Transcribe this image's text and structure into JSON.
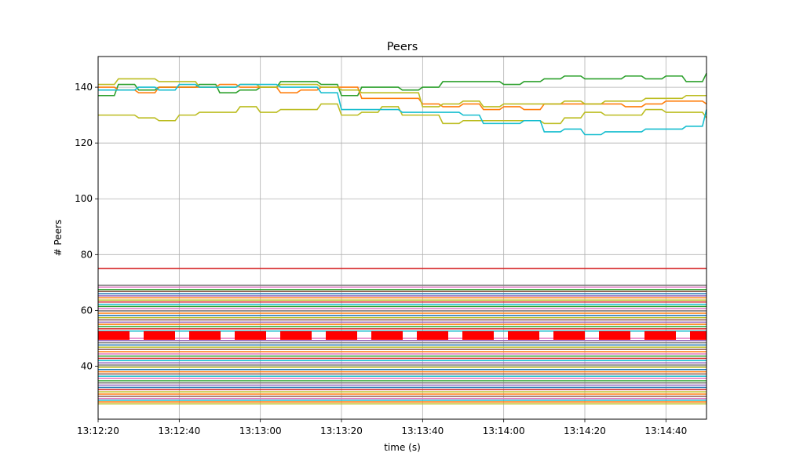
{
  "chart_data": {
    "type": "line",
    "title": "Peers",
    "xlabel": "time (s)",
    "ylabel": "# Peers",
    "x_ticks": [
      "13:12:20",
      "13:12:40",
      "13:13:00",
      "13:13:20",
      "13:13:40",
      "13:14:00",
      "13:14:20",
      "13:14:40"
    ],
    "x_tick_seconds": [
      0,
      20,
      40,
      60,
      80,
      100,
      120,
      140
    ],
    "xlim_seconds": [
      0,
      150
    ],
    "y_ticks": [
      40,
      60,
      80,
      100,
      120,
      140
    ],
    "ylim": [
      21,
      151
    ],
    "grid": true,
    "colors": {
      "green": "#2ca02c",
      "orange": "#ff7f0e",
      "olive": "#bcbd22",
      "cyan": "#17becf",
      "red": "#d62728",
      "thick_red": "#ff0000"
    },
    "series": [
      {
        "color": "#2ca02c",
        "x": [
          0,
          5,
          10,
          15,
          20,
          25,
          30,
          35,
          40,
          45,
          50,
          55,
          60,
          65,
          70,
          75,
          80,
          85,
          90,
          95,
          100,
          105,
          110,
          115,
          120,
          125,
          130,
          135,
          140,
          145,
          150
        ],
        "values": [
          137,
          141,
          139,
          140,
          140,
          141,
          138,
          139,
          140,
          142,
          142,
          141,
          137,
          140,
          140,
          139,
          140,
          142,
          142,
          142,
          141,
          142,
          143,
          144,
          143,
          143,
          144,
          143,
          144,
          142,
          145
        ]
      },
      {
        "color": "#ff7f0e",
        "x": [
          0,
          5,
          10,
          15,
          20,
          25,
          30,
          35,
          40,
          45,
          50,
          55,
          60,
          65,
          70,
          75,
          80,
          85,
          90,
          95,
          100,
          105,
          110,
          115,
          120,
          125,
          130,
          135,
          140,
          145,
          150
        ],
        "values": [
          140,
          139,
          138,
          140,
          140,
          140,
          141,
          140,
          140,
          138,
          139,
          140,
          140,
          136,
          136,
          136,
          134,
          133,
          134,
          132,
          133,
          132,
          134,
          134,
          134,
          134,
          133,
          134,
          135,
          135,
          134
        ]
      },
      {
        "color": "#bcbd22",
        "x": [
          0,
          5,
          10,
          15,
          20,
          25,
          30,
          35,
          40,
          45,
          50,
          55,
          60,
          65,
          70,
          75,
          80,
          85,
          90,
          95,
          100,
          105,
          110,
          115,
          120,
          125,
          130,
          135,
          140,
          145,
          150
        ],
        "values": [
          141,
          143,
          143,
          142,
          142,
          140,
          140,
          141,
          140,
          141,
          141,
          140,
          139,
          138,
          138,
          138,
          133,
          134,
          135,
          133,
          134,
          134,
          134,
          135,
          134,
          135,
          135,
          136,
          136,
          137,
          137
        ]
      },
      {
        "color": "#bcbd22",
        "x": [
          0,
          5,
          10,
          15,
          20,
          25,
          30,
          35,
          40,
          45,
          50,
          55,
          60,
          65,
          70,
          75,
          80,
          85,
          90,
          95,
          100,
          105,
          110,
          115,
          120,
          125,
          130,
          135,
          140,
          145,
          150
        ],
        "values": [
          130,
          130,
          129,
          128,
          130,
          131,
          131,
          133,
          131,
          132,
          132,
          134,
          130,
          131,
          133,
          130,
          130,
          127,
          128,
          128,
          128,
          128,
          127,
          129,
          131,
          130,
          130,
          132,
          131,
          131,
          129
        ]
      },
      {
        "color": "#17becf",
        "x": [
          0,
          5,
          10,
          15,
          20,
          25,
          30,
          35,
          40,
          45,
          50,
          55,
          60,
          65,
          70,
          75,
          80,
          85,
          90,
          95,
          100,
          105,
          110,
          115,
          120,
          125,
          130,
          135,
          140,
          145,
          150
        ],
        "values": [
          139,
          139,
          140,
          139,
          141,
          140,
          140,
          141,
          141,
          140,
          140,
          138,
          132,
          132,
          132,
          131,
          131,
          131,
          130,
          127,
          127,
          128,
          124,
          125,
          123,
          124,
          124,
          125,
          125,
          126,
          132
        ]
      },
      {
        "color": "#d62728",
        "x": [
          0,
          150
        ],
        "values": [
          75,
          75
        ]
      },
      {
        "color": "#ff0000",
        "style": "dashed",
        "x": [
          0,
          150
        ],
        "values": [
          51,
          51
        ]
      }
    ],
    "band_lines": [
      {
        "color": "#7f7f7f",
        "value": 69
      },
      {
        "color": "#e377c2",
        "value": 68.3
      },
      {
        "color": "#2ca02c",
        "value": 67.5
      },
      {
        "color": "#8c564b",
        "value": 66.8
      },
      {
        "color": "#1f77b4",
        "value": 66
      },
      {
        "color": "#9467bd",
        "value": 65.2
      },
      {
        "color": "#ff7f0e",
        "value": 64.5
      },
      {
        "color": "#bcbd22",
        "value": 63.7
      },
      {
        "color": "#d62728",
        "value": 63
      },
      {
        "color": "#17becf",
        "value": 62.2
      },
      {
        "color": "#2ca02c",
        "value": 61.4
      },
      {
        "color": "#e377c2",
        "value": 60.6
      },
      {
        "color": "#7f7f7f",
        "value": 59.8
      },
      {
        "color": "#ff7f0e",
        "value": 59
      },
      {
        "color": "#1f77b4",
        "value": 58.2
      },
      {
        "color": "#bcbd22",
        "value": 57.4
      },
      {
        "color": "#8c564b",
        "value": 56.6
      },
      {
        "color": "#9467bd",
        "value": 55.8
      },
      {
        "color": "#ff7f0e",
        "value": 55
      },
      {
        "color": "#2ca02c",
        "value": 54.2
      },
      {
        "color": "#d62728",
        "value": 53.4
      },
      {
        "color": "#17becf",
        "value": 52.6
      },
      {
        "color": "#e377c2",
        "value": 50
      },
      {
        "color": "#9467bd",
        "value": 49.2
      },
      {
        "color": "#7f7f7f",
        "value": 48.4
      },
      {
        "color": "#1f77b4",
        "value": 47.6
      },
      {
        "color": "#bcbd22",
        "value": 46.8
      },
      {
        "color": "#8c564b",
        "value": 46
      },
      {
        "color": "#ff7f0e",
        "value": 45.2
      },
      {
        "color": "#e377c2",
        "value": 44.4
      },
      {
        "color": "#2ca02c",
        "value": 43.6
      },
      {
        "color": "#d62728",
        "value": 42.8
      },
      {
        "color": "#17becf",
        "value": 42
      },
      {
        "color": "#9467bd",
        "value": 41.2
      },
      {
        "color": "#7f7f7f",
        "value": 40.4
      },
      {
        "color": "#bcbd22",
        "value": 39.6
      },
      {
        "color": "#1f77b4",
        "value": 38.8
      },
      {
        "color": "#ff7f0e",
        "value": 38
      },
      {
        "color": "#8c564b",
        "value": 37.2
      },
      {
        "color": "#17becf",
        "value": 36.4
      },
      {
        "color": "#e377c2",
        "value": 35.6
      },
      {
        "color": "#2ca02c",
        "value": 34.8
      },
      {
        "color": "#7f7f7f",
        "value": 34
      },
      {
        "color": "#9467bd",
        "value": 33.2
      },
      {
        "color": "#1f77b4",
        "value": 32.4
      },
      {
        "color": "#d62728",
        "value": 31.6
      },
      {
        "color": "#bcbd22",
        "value": 30.8
      },
      {
        "color": "#ff7f0e",
        "value": 30
      },
      {
        "color": "#8c564b",
        "value": 29.2
      },
      {
        "color": "#e377c2",
        "value": 28.4
      },
      {
        "color": "#17becf",
        "value": 27.8
      },
      {
        "color": "#ff7f0e",
        "value": 27.2
      },
      {
        "color": "#bcbd22",
        "value": 26.5
      }
    ]
  }
}
